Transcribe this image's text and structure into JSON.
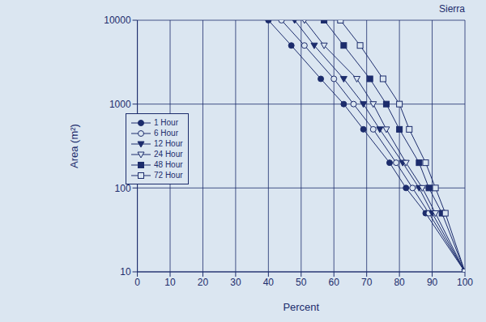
{
  "chart_data": {
    "type": "line",
    "title": "Sierra",
    "x_label": "Percent",
    "y_label": "Area (m²)",
    "log": "y",
    "grid": true,
    "legend": "left",
    "xlim": [
      0,
      100
    ],
    "xticks": [
      0,
      10,
      20,
      30,
      40,
      50,
      60,
      70,
      80,
      90,
      100
    ],
    "ylim": [
      10,
      10000
    ],
    "yticks": [
      10,
      100,
      1000,
      10000
    ],
    "y": [
      10000,
      5000,
      2000,
      1000,
      500,
      200,
      100,
      50,
      10
    ],
    "series": [
      {
        "name": "1 Hour",
        "color": "#1c2c6c",
        "marker": "circle",
        "x": [
          40,
          47,
          56,
          63,
          69,
          77,
          82,
          88,
          100
        ]
      },
      {
        "name": "6 Hour",
        "color": "#1c2c6c",
        "marker": "circle_open",
        "x": [
          44,
          51,
          60,
          66,
          72,
          79,
          84,
          89,
          100
        ]
      },
      {
        "name": "12 Hour",
        "color": "#1c2c6c",
        "marker": "triangle_down",
        "x": [
          48,
          54,
          63,
          69,
          74,
          81,
          86,
          90,
          100
        ]
      },
      {
        "name": "24 Hour",
        "color": "#1c2c6c",
        "marker": "triangle_down_open",
        "x": [
          51,
          57,
          67,
          72,
          76,
          82,
          87,
          91,
          100
        ]
      },
      {
        "name": "48 Hour",
        "color": "#1c2c6c",
        "marker": "square",
        "x": [
          57,
          63,
          71,
          76,
          80,
          86,
          89,
          93,
          100
        ]
      },
      {
        "name": "72 Hour",
        "color": "#1c2c6c",
        "marker": "square_open",
        "x": [
          62,
          68,
          75,
          80,
          83,
          88,
          91,
          94,
          100
        ]
      }
    ]
  }
}
